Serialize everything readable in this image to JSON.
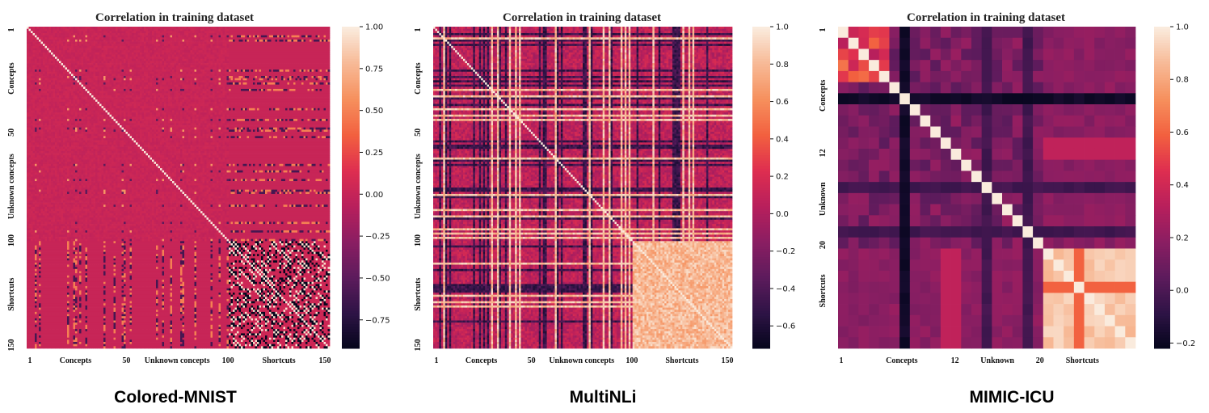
{
  "colors": {
    "stops": [
      "#03051a",
      "#2d1345",
      "#5c1b5c",
      "#8a1e62",
      "#b81f5c",
      "#de2e50",
      "#f2603f",
      "#f6905d",
      "#f7b996",
      "#faebdd"
    ]
  },
  "chart_data": [
    {
      "type": "heatmap",
      "title": "Correlation in training dataset",
      "caption": "Colored-MNIST",
      "n": 150,
      "x_ticks": [
        {
          "label": "1",
          "at": 1
        },
        {
          "label": "Concepts",
          "at": 25
        },
        {
          "label": "50",
          "at": 50
        },
        {
          "label": "Unknown concepts",
          "at": 75
        },
        {
          "label": "100",
          "at": 100
        },
        {
          "label": "Shortcuts",
          "at": 125
        },
        {
          "label": "150",
          "at": 150
        }
      ],
      "y_ticks": [
        {
          "label": "1",
          "at": 1
        },
        {
          "label": "Concepts",
          "at": 25
        },
        {
          "label": "50",
          "at": 50
        },
        {
          "label": "Unknown concepts",
          "at": 75
        },
        {
          "label": "100",
          "at": 100
        },
        {
          "label": "Shortcuts",
          "at": 125
        },
        {
          "label": "150",
          "at": 150
        }
      ],
      "colorbar": {
        "min": -0.92,
        "max": 1.0,
        "ticks": [
          "1.00",
          "0.75",
          "0.50",
          "0.25",
          "0.00",
          "−0.25",
          "−0.50",
          "−0.75"
        ],
        "tick_values": [
          1.0,
          0.75,
          0.5,
          0.25,
          0.0,
          -0.25,
          -0.5,
          -0.75
        ]
      }
    },
    {
      "type": "heatmap",
      "title": "Correlation in training dataset",
      "caption": "MultiNLi",
      "n": 150,
      "x_ticks": [
        {
          "label": "1",
          "at": 1
        },
        {
          "label": "Concepts",
          "at": 25
        },
        {
          "label": "50",
          "at": 50
        },
        {
          "label": "Unknown concepts",
          "at": 75
        },
        {
          "label": "100",
          "at": 100
        },
        {
          "label": "Shortcuts",
          "at": 125
        },
        {
          "label": "150",
          "at": 150
        }
      ],
      "y_ticks": [
        {
          "label": "1",
          "at": 1
        },
        {
          "label": "Concepts",
          "at": 25
        },
        {
          "label": "50",
          "at": 50
        },
        {
          "label": "Unknown concepts",
          "at": 75
        },
        {
          "label": "100",
          "at": 100
        },
        {
          "label": "Shortcuts",
          "at": 125
        },
        {
          "label": "150",
          "at": 150
        }
      ],
      "colorbar": {
        "min": -0.72,
        "max": 1.0,
        "ticks": [
          "1.0",
          "0.8",
          "0.6",
          "0.4",
          "0.2",
          "0.0",
          "−0.2",
          "−0.4",
          "−0.6"
        ],
        "tick_values": [
          1.0,
          0.8,
          0.6,
          0.4,
          0.2,
          0.0,
          -0.2,
          -0.4,
          -0.6
        ]
      }
    },
    {
      "type": "heatmap",
      "title": "Correlation in training dataset",
      "caption": "MIMIC-ICU",
      "n": 29,
      "x_ticks": [
        {
          "label": "1",
          "at": 1
        },
        {
          "label": "Concepts",
          "at": 7
        },
        {
          "label": "12",
          "at": 12
        },
        {
          "label": "Unknown",
          "at": 16
        },
        {
          "label": "20",
          "at": 20
        },
        {
          "label": "Shortcuts",
          "at": 24
        }
      ],
      "y_ticks": [
        {
          "label": "1",
          "at": 1
        },
        {
          "label": "Concepts",
          "at": 7
        },
        {
          "label": "12",
          "at": 12
        },
        {
          "label": "Unknown",
          "at": 16
        },
        {
          "label": "20",
          "at": 20
        },
        {
          "label": "Shortcuts",
          "at": 24
        }
      ],
      "colorbar": {
        "min": -0.22,
        "max": 1.0,
        "ticks": [
          "1.0",
          "0.8",
          "0.6",
          "0.4",
          "0.2",
          "0.0",
          "−0.2"
        ],
        "tick_values": [
          1.0,
          0.8,
          0.6,
          0.4,
          0.2,
          0.0,
          -0.2
        ]
      }
    }
  ]
}
